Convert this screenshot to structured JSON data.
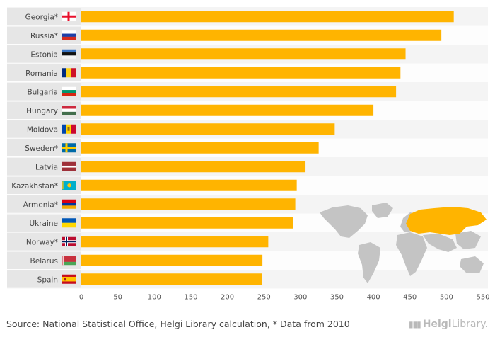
{
  "chart_data": {
    "type": "bar",
    "orientation": "horizontal",
    "categories": [
      "Georgia*",
      "Russia*",
      "Estonia",
      "Romania",
      "Bulgaria",
      "Hungary",
      "Moldova",
      "Sweden*",
      "Latvia",
      "Kazakhstan*",
      "Armenia*",
      "Ukraine",
      "Norway*",
      "Belarus",
      "Spain"
    ],
    "values": [
      510,
      493,
      444,
      437,
      431,
      400,
      347,
      325,
      307,
      295,
      293,
      290,
      256,
      248,
      247
    ],
    "xlim": [
      0,
      550
    ],
    "xticks": [
      "0",
      "50",
      "100",
      "150",
      "200",
      "250",
      "300",
      "350",
      "400",
      "450",
      "500",
      "550"
    ],
    "bar_color": "#ffb400",
    "title": "",
    "xlabel": "",
    "ylabel": ""
  },
  "flags": [
    "georgia-flag-icon",
    "russia-flag-icon",
    "estonia-flag-icon",
    "romania-flag-icon",
    "bulgaria-flag-icon",
    "hungary-flag-icon",
    "moldova-flag-icon",
    "sweden-flag-icon",
    "latvia-flag-icon",
    "kazakhstan-flag-icon",
    "armenia-flag-icon",
    "ukraine-flag-icon",
    "norway-flag-icon",
    "belarus-flag-icon",
    "spain-flag-icon"
  ],
  "footer": {
    "source": "Source: National Statistical Office, Helgi Library calculation, * Data from 2010",
    "logo_brand": "Helgi",
    "logo_suffix": "Library."
  }
}
